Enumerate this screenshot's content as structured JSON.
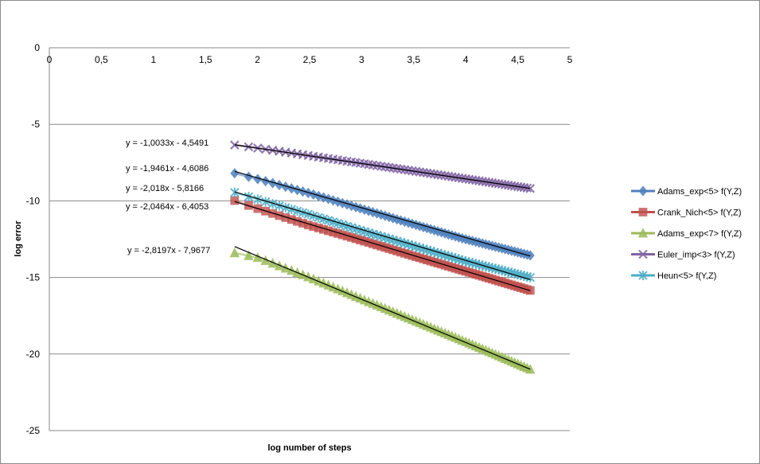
{
  "chart_data": {
    "type": "scatter",
    "title": "",
    "xlabel": "log number of steps",
    "ylabel": "log error",
    "xlim": [
      0,
      5
    ],
    "ylim": [
      -25,
      0
    ],
    "x_ticks": [
      "0",
      "0,5",
      "1",
      "1,5",
      "2",
      "2,5",
      "3",
      "3,5",
      "4",
      "4,5",
      "5"
    ],
    "y_ticks": [
      "0",
      "-5",
      "-10",
      "-15",
      "-20",
      "-25"
    ],
    "grid": "horizontal",
    "legend_position": "right",
    "x_range_of_data": [
      1.78,
      4.62
    ],
    "series": [
      {
        "name": "Adams_exp<5> f(Y,Z)",
        "color": "#4f81bd",
        "marker": "diamond",
        "points": [
          [
            1.78,
            -8.2
          ],
          [
            2.0,
            -8.57
          ],
          [
            2.5,
            -9.51
          ],
          [
            3.0,
            -10.52
          ],
          [
            3.5,
            -11.53
          ],
          [
            4.0,
            -12.51
          ],
          [
            4.62,
            -13.56
          ]
        ]
      },
      {
        "name": "Crank_Nich<5> f(Y,Z)",
        "color": "#c0504d",
        "marker": "square",
        "points": [
          [
            1.78,
            -9.98
          ],
          [
            2.0,
            -10.5
          ],
          [
            2.5,
            -11.6
          ],
          [
            3.0,
            -12.58
          ],
          [
            3.5,
            -13.6
          ],
          [
            4.0,
            -14.6
          ],
          [
            4.62,
            -15.85
          ]
        ]
      },
      {
        "name": "Adams_exp<7> f(Y,Z)",
        "color": "#9bbb59",
        "marker": "triangle",
        "points": [
          [
            1.78,
            -13.4
          ],
          [
            2.0,
            -13.7
          ],
          [
            2.5,
            -15.0
          ],
          [
            3.0,
            -16.4
          ],
          [
            3.5,
            -17.8
          ],
          [
            4.0,
            -19.2
          ],
          [
            4.62,
            -21.0
          ]
        ]
      },
      {
        "name": "Euler_imp<3> f(Y,Z)",
        "color": "#8064a2",
        "marker": "x",
        "points": [
          [
            1.78,
            -6.35
          ],
          [
            2.0,
            -6.55
          ],
          [
            2.5,
            -7.05
          ],
          [
            3.0,
            -7.55
          ],
          [
            3.5,
            -8.05
          ],
          [
            4.0,
            -8.56
          ],
          [
            4.62,
            -9.19
          ]
        ]
      },
      {
        "name": "Heun<5> f(Y,Z)",
        "color": "#4bacc6",
        "marker": "star",
        "points": [
          [
            1.78,
            -9.45
          ],
          [
            2.0,
            -9.9
          ],
          [
            2.5,
            -10.9
          ],
          [
            3.0,
            -11.95
          ],
          [
            3.5,
            -12.95
          ],
          [
            4.0,
            -13.95
          ],
          [
            4.62,
            -15.0
          ]
        ]
      }
    ],
    "trendlines": [
      {
        "label": "y = -1,0033x - 4,5491",
        "slope": -1.0033,
        "intercept": -4.5491
      },
      {
        "label": "y = -1,9461x - 4,6086",
        "slope": -1.9461,
        "intercept": -4.6086
      },
      {
        "label": "y = -2,018x - 5,8166",
        "slope": -2.018,
        "intercept": -5.8166
      },
      {
        "label": "y = -2,0464x - 6,4053",
        "slope": -2.0464,
        "intercept": -6.4053
      },
      {
        "label": "y = -2,8197x - 7,9677",
        "slope": -2.8197,
        "intercept": -7.9677
      }
    ]
  }
}
